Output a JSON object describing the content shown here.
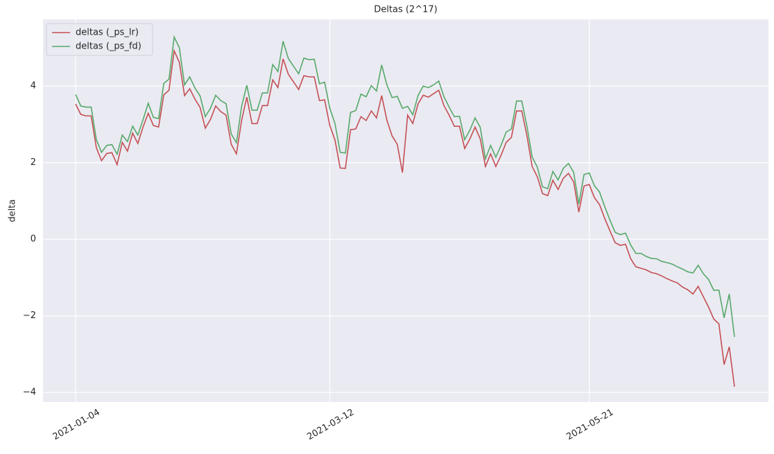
{
  "chart_data": {
    "type": "line",
    "title": "Deltas (2^17)",
    "y_label": "delta",
    "categories": [
      "2021-01-04",
      null,
      null,
      null,
      null,
      null,
      null,
      null,
      null,
      null,
      null,
      null,
      null,
      null,
      null,
      null,
      null,
      null,
      null,
      null,
      null,
      null,
      null,
      null,
      null,
      null,
      null,
      null,
      null,
      null,
      null,
      null,
      null,
      null,
      null,
      null,
      null,
      null,
      null,
      null,
      null,
      null,
      null,
      null,
      null,
      null,
      null,
      null,
      null,
      "2021-03-12",
      null,
      null,
      null,
      null,
      null,
      null,
      null,
      null,
      null,
      null,
      null,
      null,
      null,
      null,
      null,
      null,
      null,
      null,
      null,
      null,
      null,
      null,
      null,
      null,
      null,
      null,
      null,
      null,
      null,
      null,
      null,
      null,
      null,
      null,
      null,
      null,
      null,
      null,
      null,
      null,
      null,
      null,
      null,
      null,
      null,
      null,
      null,
      null,
      null,
      "2021-05-21",
      null,
      null,
      null,
      null,
      null,
      null,
      null,
      null,
      null,
      null,
      null,
      null,
      null,
      null,
      null,
      null,
      null,
      null,
      null,
      null,
      null,
      null,
      null,
      null,
      null,
      null,
      null,
      null
    ],
    "series": [
      {
        "name": "deltas (_ps_lr)",
        "color": "#c44e52",
        "values": [
          3.53,
          3.26,
          3.22,
          3.22,
          2.39,
          2.05,
          2.24,
          2.26,
          1.95,
          2.53,
          2.3,
          2.77,
          2.5,
          2.93,
          3.29,
          2.97,
          2.93,
          3.77,
          3.89,
          4.92,
          4.62,
          3.75,
          3.93,
          3.66,
          3.44,
          2.9,
          3.13,
          3.48,
          3.33,
          3.24,
          2.48,
          2.23,
          3.1,
          3.71,
          3.02,
          3.02,
          3.49,
          3.49,
          4.16,
          3.96,
          4.71,
          4.31,
          4.11,
          3.91,
          4.27,
          4.24,
          4.24,
          3.62,
          3.64,
          2.97,
          2.59,
          1.86,
          1.85,
          2.86,
          2.88,
          3.2,
          3.1,
          3.35,
          3.17,
          3.75,
          3.11,
          2.7,
          2.48,
          1.74,
          3.24,
          3.02,
          3.53,
          3.76,
          3.71,
          3.8,
          3.89,
          3.49,
          3.24,
          2.95,
          2.95,
          2.37,
          2.62,
          2.93,
          2.62,
          1.9,
          2.23,
          1.9,
          2.19,
          2.53,
          2.66,
          3.35,
          3.35,
          2.7,
          1.9,
          1.63,
          1.19,
          1.14,
          1.54,
          1.3,
          1.59,
          1.72,
          1.5,
          0.71,
          1.39,
          1.43,
          1.09,
          0.9,
          0.54,
          0.22,
          -0.09,
          -0.16,
          -0.13,
          -0.51,
          -0.72,
          -0.76,
          -0.8,
          -0.87,
          -0.9,
          -0.96,
          -1.03,
          -1.09,
          -1.14,
          -1.25,
          -1.32,
          -1.43,
          -1.23,
          -1.5,
          -1.77,
          -2.08,
          -2.21,
          -3.27,
          -2.81,
          -3.85
        ]
      },
      {
        "name": "deltas (_ps_fd)",
        "color": "#55a868",
        "values": [
          3.78,
          3.48,
          3.45,
          3.45,
          2.6,
          2.27,
          2.45,
          2.47,
          2.22,
          2.72,
          2.55,
          2.95,
          2.72,
          3.12,
          3.55,
          3.18,
          3.15,
          4.07,
          4.18,
          5.28,
          5.0,
          4.03,
          4.24,
          3.95,
          3.74,
          3.2,
          3.42,
          3.76,
          3.62,
          3.54,
          2.75,
          2.52,
          3.47,
          4.02,
          3.37,
          3.37,
          3.82,
          3.82,
          4.56,
          4.38,
          5.17,
          4.72,
          4.52,
          4.32,
          4.73,
          4.69,
          4.7,
          4.06,
          4.1,
          3.42,
          3.02,
          2.27,
          2.25,
          3.31,
          3.36,
          3.79,
          3.72,
          4.01,
          3.87,
          4.55,
          4.03,
          3.7,
          3.73,
          3.42,
          3.47,
          3.25,
          3.75,
          4.0,
          3.96,
          4.03,
          4.13,
          3.72,
          3.45,
          3.2,
          3.21,
          2.6,
          2.85,
          3.17,
          2.92,
          2.1,
          2.45,
          2.14,
          2.45,
          2.8,
          2.88,
          3.61,
          3.61,
          2.95,
          2.15,
          1.88,
          1.37,
          1.32,
          1.77,
          1.55,
          1.85,
          1.98,
          1.75,
          0.92,
          1.69,
          1.73,
          1.4,
          1.23,
          0.85,
          0.5,
          0.18,
          0.12,
          0.16,
          -0.15,
          -0.37,
          -0.37,
          -0.45,
          -0.5,
          -0.51,
          -0.58,
          -0.61,
          -0.65,
          -0.72,
          -0.78,
          -0.85,
          -0.88,
          -0.68,
          -0.9,
          -1.05,
          -1.33,
          -1.33,
          -2.05,
          -1.43,
          -2.55
        ]
      }
    ],
    "ylim": [
      -4.25,
      5.74
    ],
    "yticks": [
      {
        "value": -4,
        "label": "−4"
      },
      {
        "value": -2,
        "label": "−2"
      },
      0,
      2,
      4
    ],
    "grid": true,
    "legend": "upper left"
  }
}
